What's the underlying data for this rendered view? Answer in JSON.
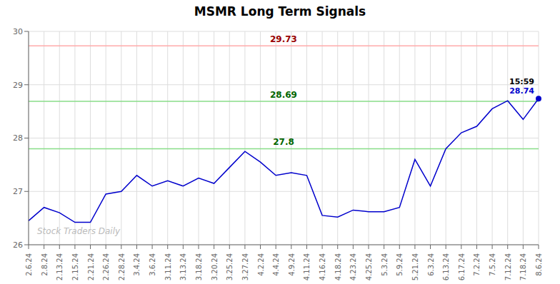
{
  "chart_data": {
    "type": "line",
    "title": "MSMR Long Term Signals",
    "categories": [
      "2.6.24",
      "2.8.24",
      "2.13.24",
      "2.15.24",
      "2.21.24",
      "2.26.24",
      "2.28.24",
      "3.4.24",
      "3.6.24",
      "3.11.24",
      "3.13.24",
      "3.18.24",
      "3.20.24",
      "3.25.24",
      "3.27.24",
      "4.2.24",
      "4.4.24",
      "4.9.24",
      "4.11.24",
      "4.16.24",
      "4.18.24",
      "4.23.24",
      "4.25.24",
      "5.3.24",
      "5.9.24",
      "5.21.24",
      "6.3.24",
      "6.13.24",
      "6.17.24",
      "7.2.24",
      "7.5.24",
      "7.12.24",
      "7.18.24",
      "8.6.24"
    ],
    "values": [
      26.45,
      26.7,
      26.6,
      26.42,
      26.42,
      26.95,
      27.0,
      27.3,
      27.1,
      27.2,
      27.1,
      27.25,
      27.15,
      27.45,
      27.75,
      27.55,
      27.3,
      27.35,
      27.3,
      26.55,
      26.52,
      26.65,
      26.62,
      26.62,
      26.7,
      27.6,
      27.1,
      27.8,
      28.1,
      28.22,
      28.55,
      28.7,
      28.35,
      28.74
    ],
    "color": "#0000cc",
    "ylim": [
      26.0,
      30.0
    ],
    "yticks": [
      26,
      27,
      28,
      29,
      30
    ],
    "grid": true,
    "hlines": [
      {
        "value": 29.73,
        "label": "29.73",
        "color": "#ffaaaa",
        "label_color": "#990000"
      },
      {
        "value": 28.69,
        "label": "28.69",
        "color": "#88dd88",
        "label_color": "#006600"
      },
      {
        "value": 27.8,
        "label": "27.8",
        "color": "#88dd88",
        "label_color": "#006600"
      }
    ],
    "last_point_labels": [
      "15:59",
      "28.74"
    ],
    "watermark": "Stock Traders Daily"
  }
}
